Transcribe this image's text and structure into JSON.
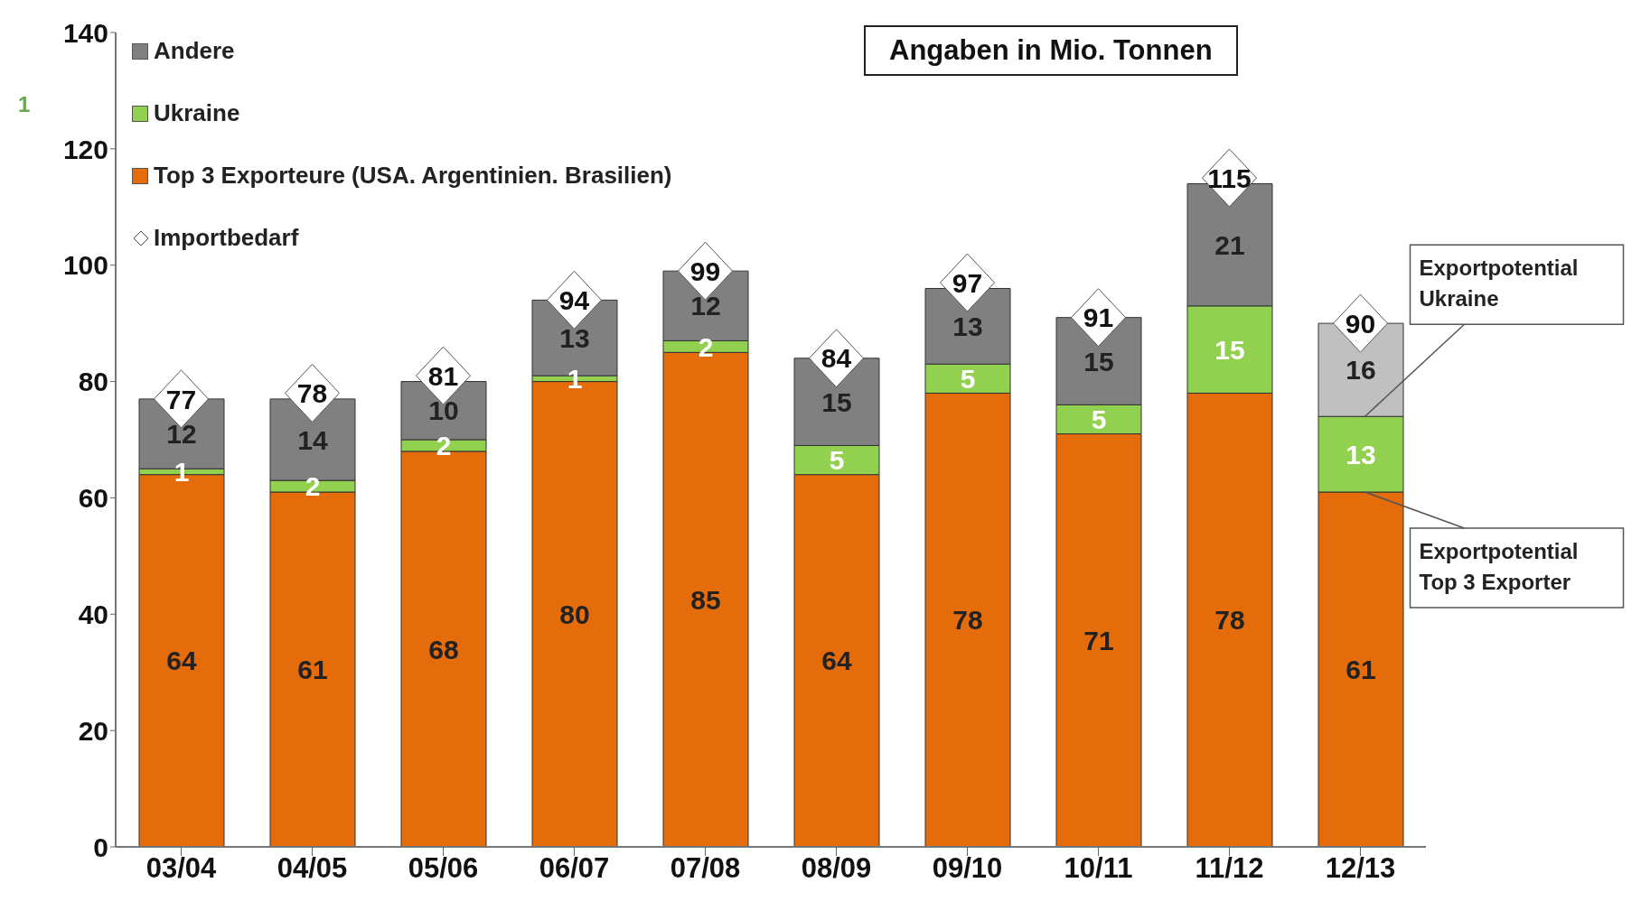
{
  "chart_data": {
    "type": "bar",
    "stacked": true,
    "categories": [
      "03/04",
      "04/05",
      "05/06",
      "06/07",
      "07/08",
      "08/09",
      "09/10",
      "10/11",
      "11/12",
      "12/13"
    ],
    "series": [
      {
        "name": "Top 3 Exporteure (USA. Argentinien. Brasilien)",
        "color": "#e46c0a",
        "values": [
          64,
          61,
          68,
          80,
          85,
          64,
          78,
          71,
          78,
          61
        ]
      },
      {
        "name": "Ukraine",
        "color": "#92d050",
        "values": [
          1,
          2,
          2,
          1,
          2,
          5,
          5,
          5,
          15,
          13
        ]
      },
      {
        "name": "Andere",
        "color": "#808080",
        "colors": [
          "#808080",
          "#808080",
          "#808080",
          "#808080",
          "#808080",
          "#808080",
          "#808080",
          "#808080",
          "#808080",
          "#c0c0c0"
        ],
        "values": [
          12,
          14,
          10,
          13,
          12,
          15,
          13,
          15,
          21,
          16
        ]
      },
      {
        "name": "Importbedarf",
        "type": "scatter",
        "marker": "diamond",
        "color": "#ffffff",
        "values": [
          77,
          78,
          81,
          94,
          99,
          84,
          97,
          91,
          115,
          90
        ]
      }
    ],
    "ylim": [
      0,
      140
    ],
    "yticks": [
      0,
      20,
      40,
      60,
      80,
      100,
      120,
      140
    ],
    "grid": false,
    "legend": "top left",
    "data_labels": true,
    "annotations": [
      "Angaben in Mio. Tonnen",
      "1",
      {
        "text": "Exportpotential Ukraine",
        "x": "12/13",
        "y": 74
      },
      {
        "text": "Exportpotential Top 3 Exporter",
        "x": "12/13",
        "y": 61
      }
    ]
  }
}
